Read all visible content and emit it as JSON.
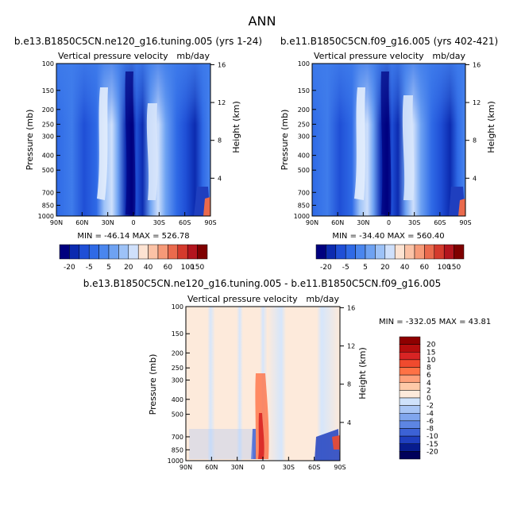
{
  "page_title": "ANN",
  "panels": [
    {
      "title": "b.e13.B1850C5CN.ne120_g16.tuning.005 (yrs 1-24)",
      "subtitle": "Vertical pressure velocity",
      "units": "mb/day",
      "stats": "MIN = -46.14   MAX = 526.78"
    },
    {
      "title": "b.e11.B1850C5CN.f09_g16.005 (yrs 402-421)",
      "subtitle": "Vertical pressure velocity",
      "units": "mb/day",
      "stats": "MIN = -34.40   MAX = 560.40"
    },
    {
      "title": "b.e13.B1850C5CN.ne120_g16.tuning.005 - b.e11.B1850C5CN.f09_g16.005",
      "subtitle": "Vertical pressure velocity",
      "units": "mb/day",
      "stats": "MIN = -332.05   MAX =  43.81"
    }
  ],
  "colorbar_levels_top": [
    "-20",
    "-5",
    "5",
    "20",
    "40",
    "60",
    "100",
    "150"
  ],
  "colorbar_levels_diff": [
    "20",
    "15",
    "10",
    "8",
    "6",
    "4",
    "2",
    "0",
    "-2",
    "-4",
    "-6",
    "-8",
    "-10",
    "-15",
    "-20"
  ],
  "colors": {
    "top_palette": [
      "#00007f",
      "#0c2bb0",
      "#1f4fd6",
      "#2f6ae6",
      "#4a86ee",
      "#6ea2f2",
      "#9dc2f7",
      "#cfe0fb",
      "#fde3d2",
      "#fbc2a6",
      "#f69a78",
      "#ea6a4d",
      "#d43a2d",
      "#b3151e",
      "#7f0000"
    ],
    "diff_palette": [
      "#8e0000",
      "#b40d0d",
      "#d82424",
      "#f04a2e",
      "#ff7245",
      "#ffa07a",
      "#ffc9a8",
      "#fdeadb",
      "#cfe2fb",
      "#a9c6f5",
      "#80a6ee",
      "#5d85e3",
      "#3c62d6",
      "#1f3fbf",
      "#071c8e",
      "#00005a"
    ]
  },
  "chart_data": [
    {
      "type": "heatmap",
      "title": "b.e13.B1850C5CN.ne120_g16.tuning.005 (yrs 1-24)",
      "subtitle": "Vertical pressure velocity",
      "units": "mb/day",
      "x_ticks": [
        "90N",
        "60N",
        "30N",
        "0",
        "30S",
        "60S",
        "90S"
      ],
      "y_ticks": [
        "100",
        "150",
        "200",
        "250",
        "300",
        "400",
        "500",
        "700",
        "850",
        "1000"
      ],
      "ylabel": "Pressure (mb)",
      "y2_ticks": [
        "16",
        "12",
        "8",
        "4"
      ],
      "y2label": "Height (km)",
      "ylim": [
        1000,
        100
      ],
      "y_scale": "log",
      "min": -46.14,
      "max": 526.78,
      "levels": [
        -20,
        -5,
        5,
        20,
        40,
        60,
        100,
        150
      ]
    },
    {
      "type": "heatmap",
      "title": "b.e11.B1850C5CN.f09_g16.005 (yrs 402-421)",
      "subtitle": "Vertical pressure velocity",
      "units": "mb/day",
      "x_ticks": [
        "90N",
        "60N",
        "30N",
        "0",
        "30S",
        "60S",
        "90S"
      ],
      "y_ticks": [
        "100",
        "150",
        "200",
        "250",
        "300",
        "400",
        "500",
        "700",
        "850",
        "1000"
      ],
      "ylabel": "Pressure (mb)",
      "y2_ticks": [
        "16",
        "12",
        "8",
        "4"
      ],
      "y2label": "Height (km)",
      "ylim": [
        1000,
        100
      ],
      "y_scale": "log",
      "min": -34.4,
      "max": 560.4,
      "levels": [
        -20,
        -5,
        5,
        20,
        40,
        60,
        100,
        150
      ]
    },
    {
      "type": "heatmap",
      "title": "b.e13.B1850C5CN.ne120_g16.tuning.005 - b.e11.B1850C5CN.f09_g16.005",
      "subtitle": "Vertical pressure velocity",
      "units": "mb/day",
      "x_ticks": [
        "90N",
        "60N",
        "30N",
        "0",
        "30S",
        "60S",
        "90S"
      ],
      "y_ticks": [
        "100",
        "150",
        "200",
        "250",
        "300",
        "400",
        "500",
        "700",
        "850",
        "1000"
      ],
      "ylabel": "Pressure (mb)",
      "y2_ticks": [
        "16",
        "12",
        "8",
        "4"
      ],
      "y2label": "Height (km)",
      "ylim": [
        1000,
        100
      ],
      "y_scale": "log",
      "min": -332.05,
      "max": 43.81,
      "levels": [
        20,
        15,
        10,
        8,
        6,
        4,
        2,
        0,
        -2,
        -4,
        -6,
        -8,
        -10,
        -15,
        -20
      ]
    }
  ]
}
